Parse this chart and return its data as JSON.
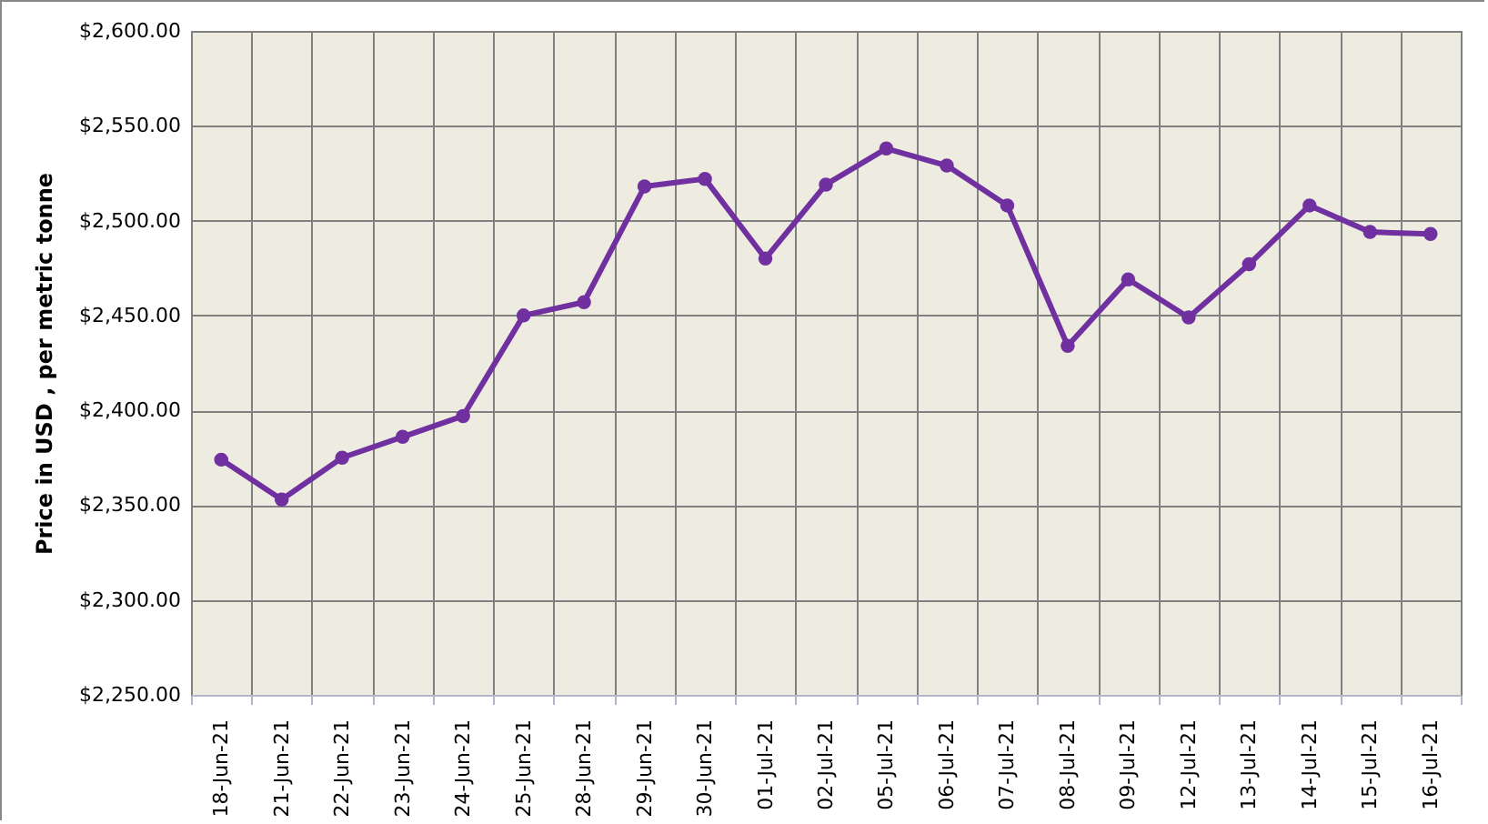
{
  "chart_data": {
    "type": "line",
    "ylabel": "Price in USD , per metric tonne",
    "categories": [
      "18-Jun-21",
      "21-Jun-21",
      "22-Jun-21",
      "23-Jun-21",
      "24-Jun-21",
      "25-Jun-21",
      "28-Jun-21",
      "29-Jun-21",
      "30-Jun-21",
      "01-Jul-21",
      "02-Jul-21",
      "05-Jul-21",
      "06-Jul-21",
      "07-Jul-21",
      "08-Jul-21",
      "09-Jul-21",
      "12-Jul-21",
      "13-Jul-21",
      "14-Jul-21",
      "15-Jul-21",
      "16-Jul-21"
    ],
    "series": [
      {
        "color": "#7030a0",
        "values": [
          2374,
          2353,
          2375,
          2386,
          2397,
          2450,
          2457,
          2518,
          2522,
          2480,
          2519,
          2538,
          2529,
          2508,
          2434,
          2469,
          2449,
          2477,
          2508,
          2494,
          2493
        ]
      }
    ],
    "ylim": [
      2250,
      2600
    ],
    "yticks": [
      {
        "value": 2250,
        "label": "$2,250.00"
      },
      {
        "value": 2300,
        "label": "$2,300.00"
      },
      {
        "value": 2350,
        "label": "$2,350.00"
      },
      {
        "value": 2400,
        "label": "$2,400.00"
      },
      {
        "value": 2450,
        "label": "$2,450.00"
      },
      {
        "value": 2500,
        "label": "$2,500.00"
      },
      {
        "value": 2550,
        "label": "$2,550.00"
      },
      {
        "value": 2600,
        "label": "$2,600.00"
      }
    ],
    "grid": true,
    "marker": "circle",
    "line_style": "solid"
  }
}
